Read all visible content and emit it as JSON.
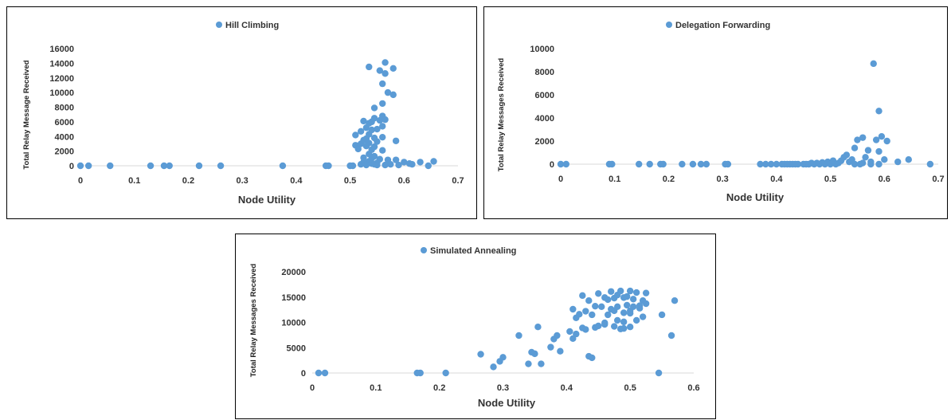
{
  "chart_data": [
    {
      "type": "scatter",
      "series": [
        {
          "name": "Hill Climbing",
          "color": "#5b9bd5"
        }
      ],
      "xlabel": "Node Utility",
      "ylabel": "Total Relay Message Received",
      "xlim": [
        0,
        0.7
      ],
      "ylim": [
        0,
        16000
      ],
      "xticks": [
        "0",
        "0.1",
        "0.2",
        "0.3",
        "0.4",
        "0.5",
        "0.6",
        "0.7"
      ],
      "yticks": [
        "0",
        "2000",
        "4000",
        "6000",
        "8000",
        "10000",
        "12000",
        "14000",
        "16000"
      ],
      "legend_position": "top-center",
      "grid": false,
      "points": [
        [
          0.0,
          0
        ],
        [
          0.015,
          0
        ],
        [
          0.055,
          0
        ],
        [
          0.13,
          0
        ],
        [
          0.155,
          0
        ],
        [
          0.165,
          0
        ],
        [
          0.22,
          0
        ],
        [
          0.26,
          0
        ],
        [
          0.375,
          0
        ],
        [
          0.455,
          0
        ],
        [
          0.46,
          0
        ],
        [
          0.5,
          0
        ],
        [
          0.505,
          0
        ],
        [
          0.51,
          2800
        ],
        [
          0.51,
          4200
        ],
        [
          0.515,
          2300
        ],
        [
          0.52,
          4700
        ],
        [
          0.52,
          3000
        ],
        [
          0.525,
          6100
        ],
        [
          0.525,
          3500
        ],
        [
          0.525,
          500
        ],
        [
          0.525,
          1100
        ],
        [
          0.53,
          2700
        ],
        [
          0.53,
          3700
        ],
        [
          0.53,
          5200
        ],
        [
          0.535,
          5800
        ],
        [
          0.535,
          4300
        ],
        [
          0.535,
          3100
        ],
        [
          0.535,
          1600
        ],
        [
          0.535,
          600
        ],
        [
          0.535,
          13500
        ],
        [
          0.54,
          4900
        ],
        [
          0.54,
          2200
        ],
        [
          0.54,
          1000
        ],
        [
          0.54,
          300
        ],
        [
          0.54,
          6000
        ],
        [
          0.545,
          3800
        ],
        [
          0.545,
          2600
        ],
        [
          0.545,
          1300
        ],
        [
          0.545,
          200
        ],
        [
          0.545,
          6500
        ],
        [
          0.545,
          7900
        ],
        [
          0.55,
          5000
        ],
        [
          0.55,
          3300
        ],
        [
          0.55,
          400
        ],
        [
          0.555,
          6200
        ],
        [
          0.555,
          900
        ],
        [
          0.555,
          13000
        ],
        [
          0.56,
          5400
        ],
        [
          0.56,
          8500
        ],
        [
          0.56,
          11200
        ],
        [
          0.56,
          6800
        ],
        [
          0.56,
          3900
        ],
        [
          0.56,
          2100
        ],
        [
          0.565,
          12600
        ],
        [
          0.565,
          14100
        ],
        [
          0.565,
          6300
        ],
        [
          0.57,
          10000
        ],
        [
          0.57,
          800
        ],
        [
          0.58,
          9700
        ],
        [
          0.58,
          13300
        ],
        [
          0.585,
          3400
        ],
        [
          0.585,
          800
        ],
        [
          0.59,
          100
        ],
        [
          0.6,
          500
        ],
        [
          0.61,
          300
        ],
        [
          0.615,
          200
        ],
        [
          0.63,
          500
        ],
        [
          0.645,
          0
        ],
        [
          0.655,
          600
        ],
        [
          0.52,
          200
        ],
        [
          0.53,
          100
        ],
        [
          0.55,
          100
        ],
        [
          0.565,
          100
        ],
        [
          0.575,
          200
        ]
      ]
    },
    {
      "type": "scatter",
      "series": [
        {
          "name": "Delegation Forwarding",
          "color": "#5b9bd5"
        }
      ],
      "xlabel": "Node Utility",
      "ylabel": "Total Relay Messages Received",
      "xlim": [
        0,
        0.7
      ],
      "ylim": [
        0,
        10000
      ],
      "xticks": [
        "0",
        "0.1",
        "0.2",
        "0.3",
        "0.4",
        "0.5",
        "0.6",
        "0.7"
      ],
      "yticks": [
        "0",
        "2000",
        "4000",
        "6000",
        "8000",
        "10000"
      ],
      "legend_position": "top-center",
      "grid": false,
      "points": [
        [
          0.0,
          0
        ],
        [
          0.01,
          0
        ],
        [
          0.09,
          0
        ],
        [
          0.095,
          0
        ],
        [
          0.145,
          0
        ],
        [
          0.165,
          0
        ],
        [
          0.185,
          0
        ],
        [
          0.19,
          0
        ],
        [
          0.225,
          0
        ],
        [
          0.245,
          0
        ],
        [
          0.26,
          0
        ],
        [
          0.27,
          0
        ],
        [
          0.305,
          0
        ],
        [
          0.31,
          0
        ],
        [
          0.37,
          0
        ],
        [
          0.38,
          0
        ],
        [
          0.39,
          0
        ],
        [
          0.4,
          0
        ],
        [
          0.41,
          0
        ],
        [
          0.415,
          0
        ],
        [
          0.42,
          0
        ],
        [
          0.425,
          0
        ],
        [
          0.43,
          0
        ],
        [
          0.435,
          0
        ],
        [
          0.44,
          0
        ],
        [
          0.45,
          0
        ],
        [
          0.455,
          0
        ],
        [
          0.46,
          0
        ],
        [
          0.465,
          100
        ],
        [
          0.47,
          0
        ],
        [
          0.475,
          100
        ],
        [
          0.48,
          0
        ],
        [
          0.485,
          150
        ],
        [
          0.49,
          0
        ],
        [
          0.495,
          200
        ],
        [
          0.5,
          0
        ],
        [
          0.505,
          300
        ],
        [
          0.51,
          0
        ],
        [
          0.515,
          100
        ],
        [
          0.52,
          300
        ],
        [
          0.525,
          600
        ],
        [
          0.53,
          800
        ],
        [
          0.535,
          200
        ],
        [
          0.54,
          400
        ],
        [
          0.545,
          1400
        ],
        [
          0.55,
          2100
        ],
        [
          0.555,
          0
        ],
        [
          0.56,
          2300
        ],
        [
          0.565,
          600
        ],
        [
          0.57,
          1200
        ],
        [
          0.575,
          200
        ],
        [
          0.58,
          8700
        ],
        [
          0.585,
          2100
        ],
        [
          0.59,
          1100
        ],
        [
          0.59,
          4600
        ],
        [
          0.595,
          2400
        ],
        [
          0.6,
          400
        ],
        [
          0.605,
          2000
        ],
        [
          0.625,
          200
        ],
        [
          0.645,
          400
        ],
        [
          0.685,
          0
        ],
        [
          0.545,
          0
        ],
        [
          0.56,
          100
        ],
        [
          0.575,
          0
        ],
        [
          0.59,
          0
        ]
      ]
    },
    {
      "type": "scatter",
      "series": [
        {
          "name": "Simulated Annealing",
          "color": "#5b9bd5"
        }
      ],
      "xlabel": "Node Utility",
      "ylabel": "Total Relay Messages Received",
      "xlim": [
        0,
        0.6
      ],
      "ylim": [
        0,
        20000
      ],
      "xticks": [
        "0",
        "0.1",
        "0.2",
        "0.3",
        "0.4",
        "0.5",
        "0.6"
      ],
      "yticks": [
        "0",
        "5000",
        "10000",
        "15000",
        "20000"
      ],
      "legend_position": "top-center",
      "grid": false,
      "points": [
        [
          0.01,
          0
        ],
        [
          0.02,
          0
        ],
        [
          0.165,
          0
        ],
        [
          0.17,
          0
        ],
        [
          0.21,
          0
        ],
        [
          0.265,
          3700
        ],
        [
          0.285,
          1200
        ],
        [
          0.295,
          2300
        ],
        [
          0.3,
          3100
        ],
        [
          0.325,
          7400
        ],
        [
          0.34,
          1800
        ],
        [
          0.345,
          4100
        ],
        [
          0.35,
          3800
        ],
        [
          0.355,
          9100
        ],
        [
          0.36,
          1800
        ],
        [
          0.375,
          5100
        ],
        [
          0.38,
          6700
        ],
        [
          0.385,
          7400
        ],
        [
          0.39,
          4300
        ],
        [
          0.405,
          8200
        ],
        [
          0.41,
          12600
        ],
        [
          0.41,
          6800
        ],
        [
          0.415,
          7700
        ],
        [
          0.415,
          10900
        ],
        [
          0.42,
          11600
        ],
        [
          0.425,
          8900
        ],
        [
          0.425,
          15300
        ],
        [
          0.43,
          12200
        ],
        [
          0.43,
          8600
        ],
        [
          0.435,
          14300
        ],
        [
          0.435,
          3300
        ],
        [
          0.44,
          3000
        ],
        [
          0.44,
          11500
        ],
        [
          0.445,
          9000
        ],
        [
          0.445,
          13200
        ],
        [
          0.45,
          9300
        ],
        [
          0.45,
          15700
        ],
        [
          0.455,
          13100
        ],
        [
          0.46,
          14900
        ],
        [
          0.46,
          9600
        ],
        [
          0.465,
          11500
        ],
        [
          0.465,
          14500
        ],
        [
          0.47,
          12600
        ],
        [
          0.47,
          16100
        ],
        [
          0.475,
          14800
        ],
        [
          0.475,
          9200
        ],
        [
          0.475,
          12300
        ],
        [
          0.48,
          10400
        ],
        [
          0.48,
          15400
        ],
        [
          0.48,
          13100
        ],
        [
          0.485,
          8700
        ],
        [
          0.485,
          16200
        ],
        [
          0.49,
          11900
        ],
        [
          0.49,
          14900
        ],
        [
          0.49,
          10100
        ],
        [
          0.495,
          13400
        ],
        [
          0.495,
          15100
        ],
        [
          0.5,
          9100
        ],
        [
          0.5,
          12300
        ],
        [
          0.5,
          16200
        ],
        [
          0.505,
          13100
        ],
        [
          0.505,
          14600
        ],
        [
          0.51,
          10400
        ],
        [
          0.51,
          15900
        ],
        [
          0.515,
          12800
        ],
        [
          0.515,
          13300
        ],
        [
          0.52,
          14300
        ],
        [
          0.52,
          11100
        ],
        [
          0.525,
          15800
        ],
        [
          0.525,
          13700
        ],
        [
          0.545,
          0
        ],
        [
          0.55,
          11500
        ],
        [
          0.565,
          7400
        ],
        [
          0.57,
          14300
        ],
        [
          0.46,
          9900
        ],
        [
          0.5,
          11800
        ],
        [
          0.49,
          8800
        ]
      ]
    }
  ]
}
